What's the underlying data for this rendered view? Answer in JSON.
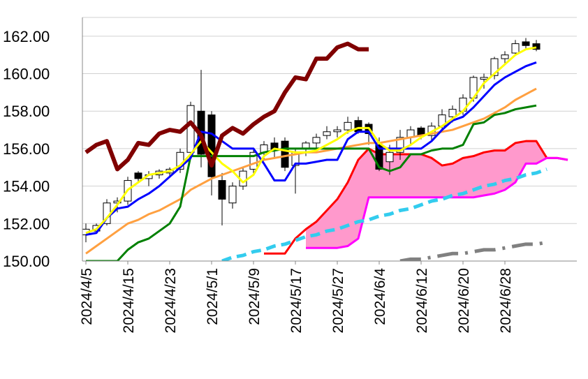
{
  "chart_data": {
    "type": "candlestick",
    "categories": [
      "2024/4/5",
      null,
      null,
      null,
      "2024/4/15",
      null,
      null,
      null,
      "2024/4/23",
      null,
      null,
      null,
      "2024/5/1",
      null,
      null,
      null,
      "2024/5/9",
      null,
      null,
      null,
      "2024/5/17",
      null,
      null,
      null,
      "2024/5/27",
      null,
      null,
      null,
      "2024/6/4",
      null,
      null,
      null,
      "2024/6/12",
      null,
      null,
      null,
      "2024/6/20",
      null,
      null,
      null,
      "2024/6/28",
      null,
      null,
      null,
      null,
      null,
      null
    ],
    "open": [
      151.4,
      151.6,
      152,
      153.1,
      153.2,
      154.7,
      154.4,
      154.6,
      154.7,
      154.9,
      155.8,
      158,
      157.8,
      154.3,
      153.1,
      154,
      154.9,
      155.8,
      156.3,
      156.4,
      155.1,
      156,
      156.3,
      156.7,
      156.9,
      157,
      157.5,
      157.3,
      156.2,
      155.3,
      155.8,
      156.6,
      157.1,
      156.7,
      157.2,
      157.7,
      158,
      158.7,
      159.7,
      159.9,
      160.8,
      161.1,
      161.7,
      161.6,
      null,
      null,
      null
    ],
    "high": [
      152,
      152,
      153.3,
      153.4,
      154.5,
      154.8,
      154.8,
      154.9,
      155,
      156,
      158.5,
      160.2,
      158,
      154.7,
      154.2,
      155,
      156,
      156.4,
      156.6,
      156.6,
      156,
      156.4,
      156.8,
      157.2,
      157.2,
      157.7,
      157.7,
      157.4,
      156.6,
      156.2,
      157,
      157.2,
      157.2,
      157.4,
      158.1,
      158.3,
      158.9,
      159.9,
      160,
      160.9,
      161.2,
      161.8,
      161.9,
      161.8,
      null,
      null,
      null
    ],
    "low": [
      151,
      151.5,
      151.9,
      152.6,
      153,
      154.2,
      154,
      154.4,
      154.5,
      154.7,
      155.5,
      155,
      153.5,
      151.9,
      152.8,
      153.8,
      154.6,
      155.4,
      155.5,
      154.8,
      153.6,
      155.6,
      156,
      156.5,
      156.6,
      156.8,
      156.8,
      156.2,
      154.8,
      154.6,
      155.4,
      156.2,
      156.5,
      156.4,
      157,
      157.4,
      157.8,
      158.5,
      159.2,
      159.7,
      160.5,
      161,
      161.3,
      161.2,
      null,
      null,
      null
    ],
    "close": [
      151.7,
      151.9,
      153.1,
      153.2,
      154.3,
      154.4,
      154.6,
      154.8,
      154.9,
      155.8,
      158.3,
      155.7,
      154.5,
      153.3,
      154,
      154.8,
      155.8,
      156.2,
      155.9,
      155,
      155.8,
      156.3,
      156.6,
      156.9,
      157,
      157.4,
      156.9,
      156.8,
      154.9,
      155.8,
      156.6,
      157,
      156.7,
      157.2,
      157.8,
      158.1,
      158.7,
      159.8,
      159.8,
      160.8,
      161,
      161.6,
      161.5,
      161.3,
      null,
      null,
      null
    ],
    "up_color": "#ffffff",
    "down_color": "#000000",
    "cloud_color": "#ff99cc",
    "series": [
      {
        "kind": "span_a",
        "color": "#ff0000",
        "width": 3,
        "values": [
          null,
          null,
          null,
          null,
          null,
          null,
          null,
          null,
          null,
          null,
          null,
          null,
          null,
          null,
          null,
          null,
          null,
          150.4,
          150.4,
          150.4,
          151.2,
          151.7,
          152.1,
          152.7,
          153.3,
          154.2,
          155.4,
          156,
          155.7,
          155.7,
          155.7,
          155.7,
          155.7,
          155.5,
          155.1,
          155.2,
          155.5,
          155.6,
          155.8,
          155.9,
          155.9,
          156.3,
          156.4,
          156.4,
          155.5,
          155.5,
          155.4
        ]
      },
      {
        "kind": "span_b",
        "color": "#ff00ff",
        "width": 3,
        "values": [
          null,
          null,
          null,
          null,
          null,
          null,
          null,
          null,
          null,
          null,
          null,
          null,
          null,
          null,
          null,
          null,
          null,
          null,
          null,
          null,
          null,
          150.7,
          150.7,
          150.7,
          150.7,
          150.8,
          151.2,
          153.4,
          153.4,
          153.4,
          153.4,
          153.4,
          153.4,
          153.4,
          153.4,
          153.4,
          153.4,
          153.4,
          153.5,
          153.6,
          153.8,
          154.2,
          155.2,
          155.2,
          155.5,
          155.5,
          155.4
        ]
      },
      {
        "kind": "line",
        "color": "#ffa040",
        "width": 3,
        "values": [
          150.4,
          150.8,
          151.2,
          151.6,
          152,
          152.2,
          152.5,
          152.7,
          153,
          153.3,
          153.8,
          154.1,
          154.4,
          154.6,
          154.8,
          155,
          155.2,
          155.4,
          155.5,
          155.6,
          155.7,
          155.8,
          155.8,
          155.9,
          156,
          156.1,
          156.2,
          156.3,
          156.3,
          156.4,
          156.5,
          156.6,
          156.7,
          156.8,
          156.9,
          157,
          157.2,
          157.4,
          157.6,
          157.9,
          158.2,
          158.6,
          158.9,
          159.2,
          null,
          null,
          null
        ]
      },
      {
        "kind": "line",
        "color": "#008000",
        "width": 3,
        "values": [
          150,
          150,
          150,
          150,
          150.6,
          151,
          151.2,
          151.6,
          152,
          152.9,
          155.6,
          155.6,
          155.6,
          155.6,
          155.6,
          155.6,
          155.6,
          155.8,
          155.9,
          156,
          156,
          156,
          156,
          156,
          156,
          156,
          156,
          156,
          155,
          154.8,
          155,
          155.7,
          155.7,
          155.9,
          156,
          156,
          156.2,
          157.3,
          157.4,
          157.8,
          157.9,
          158.1,
          158.2,
          158.3,
          null,
          null,
          null
        ]
      },
      {
        "kind": "line",
        "color": "#0000ff",
        "width": 3,
        "values": [
          151.4,
          151.5,
          152.3,
          152.8,
          152.9,
          153.3,
          153.6,
          154,
          154.5,
          155,
          155.5,
          156.9,
          156.8,
          156.4,
          156,
          156,
          156,
          155.2,
          154.3,
          154.3,
          155.2,
          155.2,
          155.3,
          155.4,
          155.4,
          156.5,
          156.9,
          156.9,
          156,
          156,
          156,
          156,
          156,
          156.4,
          157,
          157.5,
          157.7,
          158.2,
          158.8,
          159.4,
          159.8,
          160.1,
          160.4,
          160.6,
          null,
          null,
          null
        ]
      },
      {
        "kind": "line",
        "color": "#ffff00",
        "width": 3,
        "values": [
          151.5,
          151.7,
          152.3,
          153,
          153.8,
          154.2,
          154.6,
          154.7,
          154.8,
          155.1,
          155.7,
          156.4,
          155.8,
          155.2,
          154.8,
          154.2,
          154.6,
          155.6,
          156,
          155.9,
          155.8,
          155.8,
          155.9,
          156.2,
          156.5,
          156.9,
          157.1,
          157.1,
          156.3,
          155.9,
          155.9,
          156.2,
          156.6,
          156.9,
          157.2,
          157.6,
          158,
          158.7,
          159.5,
          160,
          160.5,
          161,
          161.3,
          161.4,
          null,
          null,
          null
        ]
      },
      {
        "kind": "line",
        "color": "#800000",
        "width": 6,
        "values": [
          155.8,
          156.2,
          156.4,
          154.9,
          155.4,
          156.3,
          156.2,
          156.8,
          157,
          156.9,
          157.4,
          156.7,
          155.1,
          156.7,
          157.1,
          156.8,
          157.3,
          157.7,
          158,
          159,
          159.8,
          159.7,
          160.8,
          160.8,
          161.4,
          161.6,
          161.3,
          161.3,
          null,
          null,
          null,
          null,
          null,
          null,
          null,
          null,
          null,
          null,
          null,
          null,
          null,
          null,
          null,
          null,
          null,
          null,
          null
        ]
      },
      {
        "kind": "dashed",
        "color": "#33ccee",
        "width": 5,
        "values": [
          null,
          null,
          null,
          null,
          null,
          null,
          null,
          null,
          null,
          null,
          null,
          null,
          null,
          150,
          150.2,
          150.3,
          150.5,
          150.6,
          150.8,
          150.9,
          151.1,
          151.3,
          151.4,
          151.6,
          151.7,
          151.9,
          152.1,
          152.2,
          152.4,
          152.5,
          152.7,
          152.8,
          153,
          153.2,
          153.3,
          153.5,
          153.6,
          153.8,
          154,
          154.1,
          154.3,
          154.4,
          154.6,
          154.7,
          154.9,
          null,
          null
        ]
      },
      {
        "kind": "dashdot",
        "color": "#808080",
        "width": 5,
        "values": [
          null,
          null,
          null,
          null,
          null,
          null,
          null,
          null,
          null,
          null,
          null,
          null,
          null,
          null,
          null,
          null,
          null,
          null,
          null,
          null,
          null,
          null,
          null,
          null,
          null,
          null,
          null,
          null,
          null,
          null,
          150,
          150.1,
          150.1,
          150.2,
          150.3,
          150.4,
          150.4,
          150.5,
          150.6,
          150.6,
          150.7,
          150.8,
          150.9,
          150.9,
          151,
          null,
          null
        ]
      }
    ],
    "ylim": [
      150,
      163
    ],
    "yticks": [
      {
        "value": 150,
        "label": "150.00"
      },
      {
        "value": 152,
        "label": "152.00"
      },
      {
        "value": 154,
        "label": "154.00"
      },
      {
        "value": 156,
        "label": "156.00"
      },
      {
        "value": 158,
        "label": "158.00"
      },
      {
        "value": 160,
        "label": "160.00"
      },
      {
        "value": 162,
        "label": "162.00"
      }
    ],
    "grid": true
  }
}
